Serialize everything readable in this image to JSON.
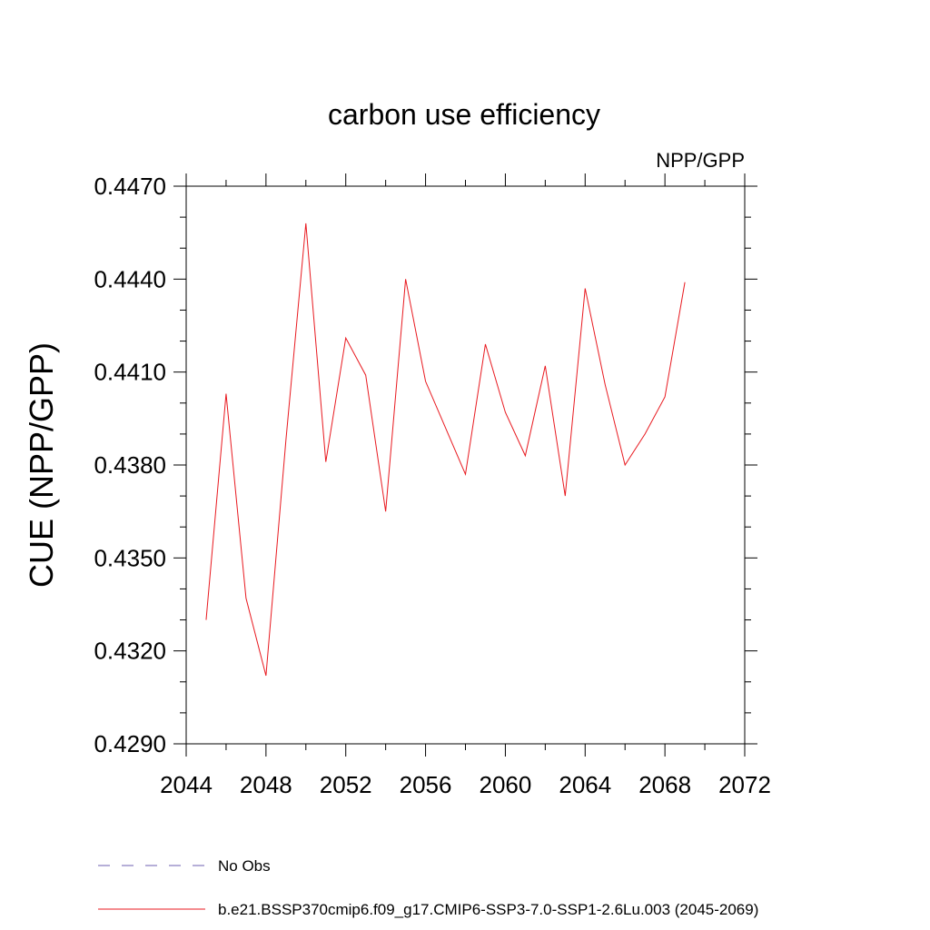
{
  "chart_data": {
    "type": "line",
    "title": "carbon use efficiency",
    "subtitle": "NPP/GPP",
    "xlabel": "",
    "ylabel": "CUE  (NPP/GPP)",
    "xlim": [
      2044,
      2072
    ],
    "ylim": [
      0.429,
      0.447
    ],
    "x_ticks": [
      "2044",
      "2048",
      "2052",
      "2056",
      "2060",
      "2064",
      "2068",
      "2072"
    ],
    "y_ticks": [
      "0.4290",
      "0.4320",
      "0.4350",
      "0.4380",
      "0.4410",
      "0.4440",
      "0.4470"
    ],
    "grid": false,
    "legend_position": "bottom",
    "series": [
      {
        "name": "b.e21.BSSP370cmip6.f09_g17.CMIP6-SSP3-7.0-SSP1-2.6Lu.003 (2045-2069)",
        "color": "#e8191f",
        "style": "solid",
        "x": [
          2045,
          2046,
          2047,
          2048,
          2049,
          2050,
          2051,
          2052,
          2053,
          2054,
          2055,
          2056,
          2057,
          2058,
          2059,
          2060,
          2061,
          2062,
          2063,
          2064,
          2065,
          2066,
          2067,
          2068,
          2069
        ],
        "y": [
          0.433,
          0.4403,
          0.4337,
          0.4312,
          0.4388,
          0.4458,
          0.4381,
          0.4421,
          0.4409,
          0.4365,
          0.444,
          0.4407,
          0.4392,
          0.4377,
          0.4419,
          0.4397,
          0.4383,
          0.4412,
          0.437,
          0.4437,
          0.4406,
          0.438,
          0.439,
          0.4402,
          0.4439
        ]
      }
    ],
    "legend": [
      {
        "label": "No Obs",
        "color": "#6d5fb0",
        "style": "dashed"
      },
      {
        "label": "b.e21.BSSP370cmip6.f09_g17.CMIP6-SSP3-7.0-SSP1-2.6Lu.003 (2045-2069)",
        "color": "#e8191f",
        "style": "solid"
      }
    ]
  }
}
